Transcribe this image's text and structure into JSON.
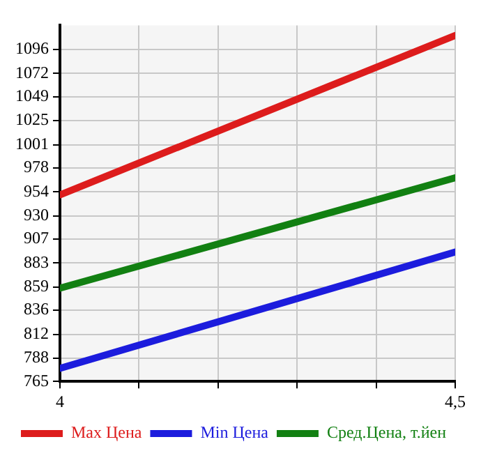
{
  "chart_data": {
    "type": "line",
    "x": [
      4,
      4.5
    ],
    "xlim": [
      4,
      4.5
    ],
    "xticks": [
      4,
      {
        "value": 4.1,
        "label": null
      },
      {
        "value": 4.2,
        "label": null
      },
      {
        "value": 4.3,
        "label": null
      },
      {
        "value": 4.4,
        "label": null
      },
      {
        "value": 4.5,
        "label": "4,5"
      }
    ],
    "ylim": [
      765,
      1120
    ],
    "yticks": [
      765,
      788,
      812,
      836,
      859,
      883,
      907,
      930,
      954,
      978,
      1001,
      1025,
      1049,
      1072,
      1096
    ],
    "grid": true,
    "legend": "bottom",
    "marker": "none",
    "line_style": "solid",
    "series": [
      {
        "name": "Max Цена",
        "color": "#dd1c1c",
        "values": [
          951,
          1110
        ]
      },
      {
        "name": "Min Цена",
        "color": "#1c1cdd",
        "values": [
          778,
          894
        ]
      },
      {
        "name": "Сред.Цена, т.йен",
        "color": "#128012",
        "values": [
          858,
          968
        ]
      }
    ]
  }
}
